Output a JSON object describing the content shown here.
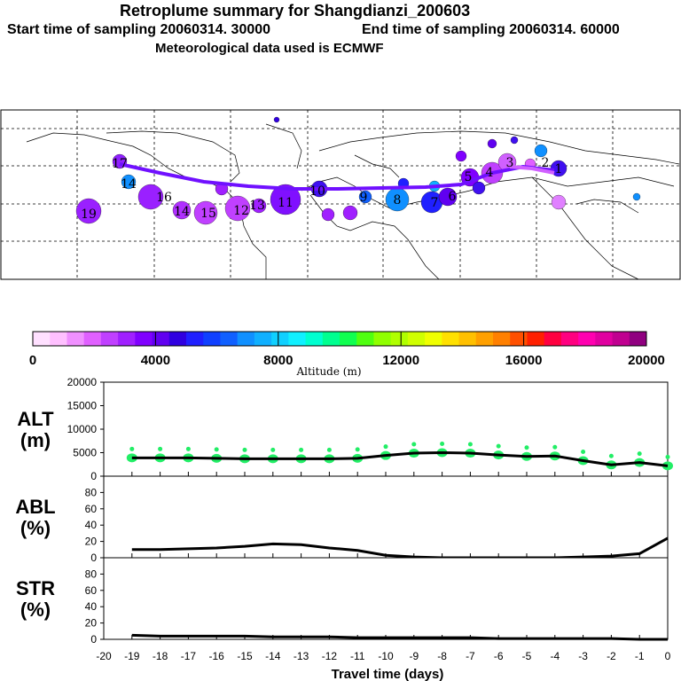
{
  "header": {
    "title": "Retroplume summary for Shangdianzi_200603",
    "start": "Start time of sampling 20060314. 30000",
    "end": "End time of sampling 20060314. 60000",
    "met": "Meteorological data used is ECMWF"
  },
  "colorbar": {
    "label": "Altitude (m)",
    "ticks": [
      "0",
      "4000",
      "8000",
      "12000",
      "16000",
      "20000"
    ],
    "colors": [
      "#ffe0ff",
      "#ffc0ff",
      "#f090ff",
      "#e060ff",
      "#c040ff",
      "#a020ff",
      "#8000ff",
      "#6000f0",
      "#3000e0",
      "#2020ff",
      "#1040ff",
      "#1060ff",
      "#1090ff",
      "#10b0ff",
      "#10d0ff",
      "#10f0ff",
      "#00ffd0",
      "#00ff90",
      "#10ff50",
      "#50ff10",
      "#90ff00",
      "#b0ff00",
      "#d0ff00",
      "#f0ff00",
      "#ffe000",
      "#ffc000",
      "#ffa000",
      "#ff8000",
      "#ff5000",
      "#ff2000",
      "#ff0040",
      "#ff0080",
      "#ff00b0",
      "#e000a0",
      "#c00090",
      "#900080"
    ]
  },
  "map": {
    "labels": [
      "19",
      "16",
      "14",
      "15",
      "14",
      "12",
      "11",
      "10",
      "9",
      "8",
      "7",
      "6",
      "5",
      "4",
      "3",
      "2",
      "1",
      "17",
      "13"
    ]
  },
  "chart_data": [
    {
      "type": "line",
      "name": "ALT",
      "ylabel": "ALT (m)",
      "ylim": [
        0,
        20000
      ],
      "yticks": [
        "20000",
        "15000",
        "10000",
        "5000",
        "0"
      ],
      "x": [
        -19,
        -18,
        -17,
        -16,
        -15,
        -14,
        -13,
        -12,
        -11,
        -10,
        -9,
        -8,
        -7,
        -6,
        -5,
        -4,
        -3,
        -2,
        -1,
        0
      ],
      "values": [
        3900,
        3900,
        3900,
        3800,
        3700,
        3700,
        3700,
        3700,
        3800,
        4400,
        4900,
        5000,
        4900,
        4500,
        4200,
        4300,
        3300,
        2400,
        2900,
        2200
      ],
      "scatter_color": "#22ee66"
    },
    {
      "type": "line",
      "name": "ABL",
      "ylabel": "ABL (%)",
      "ylim": [
        0,
        100
      ],
      "yticks": [
        "80",
        "60",
        "40",
        "20",
        "0"
      ],
      "x": [
        -19,
        -18,
        -17,
        -16,
        -15,
        -14,
        -13,
        -12,
        -11,
        -10,
        -9,
        -8,
        -7,
        -6,
        -5,
        -4,
        -3,
        -2,
        -1,
        0
      ],
      "values": [
        10,
        10,
        11,
        12,
        14,
        17,
        16,
        12,
        9,
        3,
        1,
        0,
        0,
        0,
        0,
        0,
        1,
        2,
        5,
        24
      ]
    },
    {
      "type": "line",
      "name": "STR",
      "ylabel": "STR (%)",
      "ylim": [
        0,
        100
      ],
      "yticks": [
        "80",
        "60",
        "40",
        "20",
        "0"
      ],
      "x": [
        -19,
        -18,
        -17,
        -16,
        -15,
        -14,
        -13,
        -12,
        -11,
        -10,
        -9,
        -8,
        -7,
        -6,
        -5,
        -4,
        -3,
        -2,
        -1,
        0
      ],
      "values": [
        5,
        4,
        4,
        4,
        4,
        3,
        3,
        3,
        2,
        2,
        2,
        2,
        2,
        1,
        1,
        1,
        1,
        1,
        0,
        0
      ]
    }
  ],
  "xaxis": {
    "label": "Travel time (days)",
    "ticks": [
      "-20",
      "-19",
      "-18",
      "-17",
      "-16",
      "-15",
      "-14",
      "-13",
      "-12",
      "-11",
      "-10",
      "-9",
      "-8",
      "-7",
      "-6",
      "-5",
      "-4",
      "-3",
      "-2",
      "-1",
      "0"
    ]
  }
}
